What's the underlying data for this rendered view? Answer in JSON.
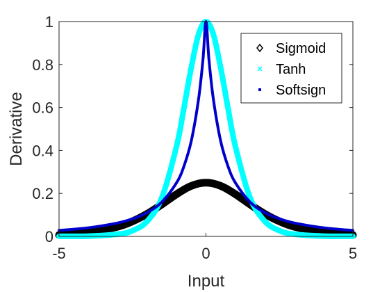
{
  "chart_data": {
    "type": "scatter",
    "title": "",
    "xlabel": "Input",
    "ylabel": "Derivative",
    "xlim": [
      -5,
      5
    ],
    "ylim": [
      0,
      1
    ],
    "x_ticks": [
      -5,
      0,
      5
    ],
    "x_tick_labels": [
      "-5",
      "0",
      "5"
    ],
    "y_ticks": [
      0,
      0.2,
      0.4,
      0.6,
      0.8,
      1
    ],
    "y_tick_labels": [
      "0",
      "0.2",
      "0.4",
      "0.6",
      "0.8",
      "1"
    ],
    "grid": false,
    "legend_position": "top-right",
    "series": [
      {
        "name": "Sigmoid",
        "marker": "diamond",
        "color": "#000000",
        "x": [
          -5,
          -4,
          -3,
          -2.5,
          -2,
          -1.5,
          -1,
          -0.5,
          0,
          0.5,
          1,
          1.5,
          2,
          2.5,
          3,
          4,
          5
        ],
        "y": [
          0.0066,
          0.0177,
          0.0452,
          0.0701,
          0.105,
          0.149,
          0.1966,
          0.235,
          0.25,
          0.235,
          0.1966,
          0.149,
          0.105,
          0.0701,
          0.0452,
          0.0177,
          0.0066
        ]
      },
      {
        "name": "Tanh",
        "marker": "x",
        "color": "#00ffff",
        "x": [
          -5,
          -4,
          -3,
          -2.5,
          -2,
          -1.5,
          -1,
          -0.75,
          -0.5,
          -0.25,
          0,
          0.25,
          0.5,
          0.75,
          1,
          1.5,
          2,
          2.5,
          3,
          4,
          5
        ],
        "y": [
          0.0002,
          0.0013,
          0.0099,
          0.0266,
          0.0707,
          0.1807,
          0.42,
          0.5974,
          0.7864,
          0.9411,
          1,
          0.9411,
          0.7864,
          0.5974,
          0.42,
          0.1807,
          0.0707,
          0.0266,
          0.0099,
          0.0013,
          0.0002
        ]
      },
      {
        "name": "Softsign",
        "marker": "point",
        "color": "#0000cd",
        "x": [
          -5,
          -4,
          -3,
          -2.5,
          -2,
          -1.5,
          -1,
          -0.75,
          -0.5,
          -0.25,
          -0.1,
          0,
          0.1,
          0.25,
          0.5,
          0.75,
          1,
          1.5,
          2,
          2.5,
          3,
          4,
          5
        ],
        "y": [
          0.0278,
          0.04,
          0.0625,
          0.0816,
          0.1111,
          0.16,
          0.25,
          0.3265,
          0.4444,
          0.64,
          0.8264,
          1,
          0.8264,
          0.64,
          0.4444,
          0.3265,
          0.25,
          0.16,
          0.1111,
          0.0816,
          0.0625,
          0.04,
          0.0278
        ]
      }
    ]
  }
}
